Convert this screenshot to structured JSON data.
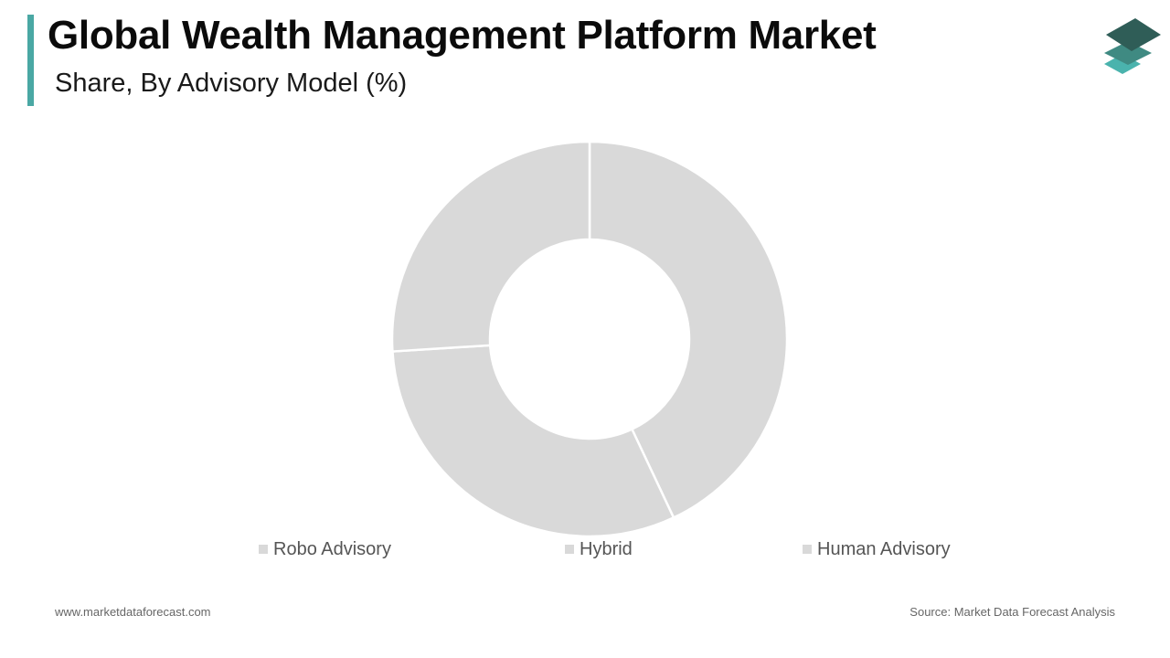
{
  "header": {
    "title": "Global Wealth Management Platform Market",
    "subtitle": "Share, By Advisory Model (%)"
  },
  "chart_data": {
    "type": "pie",
    "variant": "donut",
    "categories": [
      "Robo Advisory",
      "Hybrid",
      "Human Advisory"
    ],
    "values": [
      43,
      31,
      26
    ],
    "colors": [
      "#d9d9d9",
      "#d9d9d9",
      "#d9d9d9"
    ],
    "legend_position": "bottom",
    "data_labels": false
  },
  "legend": {
    "items": [
      {
        "label": "Robo Advisory",
        "color": "#d9d9d9"
      },
      {
        "label": "Hybrid",
        "color": "#d9d9d9"
      },
      {
        "label": "Human Advisory",
        "color": "#d9d9d9"
      }
    ]
  },
  "footer": {
    "website": "www.marketdataforecast.com",
    "source": "Source: Market Data Forecast Analysis"
  },
  "colors": {
    "accent": "#4aa8a4",
    "logo_top": "#2f5d57",
    "logo_mid": "#3f8a82",
    "logo_bottom": "#4ab3ad"
  },
  "icons": {
    "logo": "stacked-layers-icon"
  }
}
